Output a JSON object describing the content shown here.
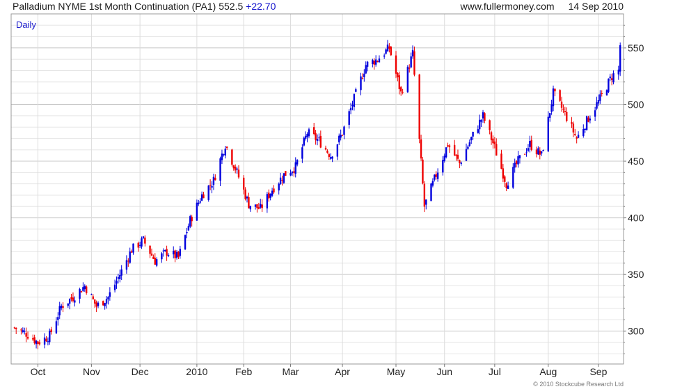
{
  "header": {
    "instrument": "Palladium NYME 1st Month Continuation (PA1)",
    "last": "552.5",
    "change": "+22.70",
    "source": "www.fullermoney.com",
    "date": "14 Sep 2010"
  },
  "footer": {
    "copyright": "© 2010 Stockcube Research Ltd"
  },
  "colors": {
    "up": "#0000dd",
    "down": "#ee0000",
    "grid": "#c8c8c8",
    "label_blue": "#1a1acc"
  },
  "chart_data": {
    "type": "candlestick",
    "interval_label": "Daily",
    "y_axis_side": "right",
    "ylim": [
      271,
      580
    ],
    "y_ticks": [
      300,
      350,
      400,
      450,
      500,
      550
    ],
    "x_tick_labels": [
      "Oct",
      "Nov",
      "Dec",
      "2010",
      "Feb",
      "Mar",
      "Apr",
      "May",
      "Jun",
      "Jul",
      "Aug",
      "Sep"
    ],
    "x_tick_dates": [
      "2009-10-01",
      "2009-11-02",
      "2009-12-01",
      "2010-01-04",
      "2010-02-01",
      "2010-03-01",
      "2010-04-01",
      "2010-05-03",
      "2010-06-01",
      "2010-07-01",
      "2010-08-02",
      "2010-09-01"
    ],
    "grid": true,
    "closes": [
      {
        "date": "2009-09-17",
        "close": 303
      },
      {
        "date": "2009-09-24",
        "close": 298
      },
      {
        "date": "2009-10-01",
        "close": 290
      },
      {
        "date": "2009-10-08",
        "close": 296
      },
      {
        "date": "2009-10-15",
        "close": 322
      },
      {
        "date": "2009-10-22",
        "close": 330
      },
      {
        "date": "2009-10-29",
        "close": 340
      },
      {
        "date": "2009-11-05",
        "close": 322
      },
      {
        "date": "2009-11-12",
        "close": 330
      },
      {
        "date": "2009-11-19",
        "close": 350
      },
      {
        "date": "2009-11-26",
        "close": 372
      },
      {
        "date": "2009-12-03",
        "close": 380
      },
      {
        "date": "2009-12-10",
        "close": 362
      },
      {
        "date": "2009-12-17",
        "close": 370
      },
      {
        "date": "2009-12-24",
        "close": 365
      },
      {
        "date": "2009-12-31",
        "close": 398
      },
      {
        "date": "2010-01-07",
        "close": 420
      },
      {
        "date": "2010-01-14",
        "close": 433
      },
      {
        "date": "2010-01-21",
        "close": 465
      },
      {
        "date": "2010-01-28",
        "close": 440
      },
      {
        "date": "2010-02-04",
        "close": 412
      },
      {
        "date": "2010-02-11",
        "close": 408
      },
      {
        "date": "2010-02-18",
        "close": 425
      },
      {
        "date": "2010-02-25",
        "close": 438
      },
      {
        "date": "2010-03-04",
        "close": 445
      },
      {
        "date": "2010-03-11",
        "close": 475
      },
      {
        "date": "2010-03-18",
        "close": 468
      },
      {
        "date": "2010-03-25",
        "close": 455
      },
      {
        "date": "2010-04-01",
        "close": 475
      },
      {
        "date": "2010-04-08",
        "close": 505
      },
      {
        "date": "2010-04-15",
        "close": 535
      },
      {
        "date": "2010-04-22",
        "close": 540
      },
      {
        "date": "2010-04-29",
        "close": 550
      },
      {
        "date": "2010-05-06",
        "close": 510
      },
      {
        "date": "2010-05-13",
        "close": 545
      },
      {
        "date": "2010-05-20",
        "close": 410
      },
      {
        "date": "2010-05-27",
        "close": 438
      },
      {
        "date": "2010-06-03",
        "close": 465
      },
      {
        "date": "2010-06-10",
        "close": 448
      },
      {
        "date": "2010-06-17",
        "close": 470
      },
      {
        "date": "2010-06-24",
        "close": 490
      },
      {
        "date": "2010-07-01",
        "close": 462
      },
      {
        "date": "2010-07-08",
        "close": 430
      },
      {
        "date": "2010-07-15",
        "close": 450
      },
      {
        "date": "2010-07-22",
        "close": 465
      },
      {
        "date": "2010-07-29",
        "close": 455
      },
      {
        "date": "2010-08-05",
        "close": 510
      },
      {
        "date": "2010-08-12",
        "close": 492
      },
      {
        "date": "2010-08-19",
        "close": 470
      },
      {
        "date": "2010-08-26",
        "close": 488
      },
      {
        "date": "2010-09-02",
        "close": 505
      },
      {
        "date": "2010-09-09",
        "close": 525
      },
      {
        "date": "2010-09-13",
        "close": 530
      },
      {
        "date": "2010-09-14",
        "close": 552.5
      }
    ]
  }
}
